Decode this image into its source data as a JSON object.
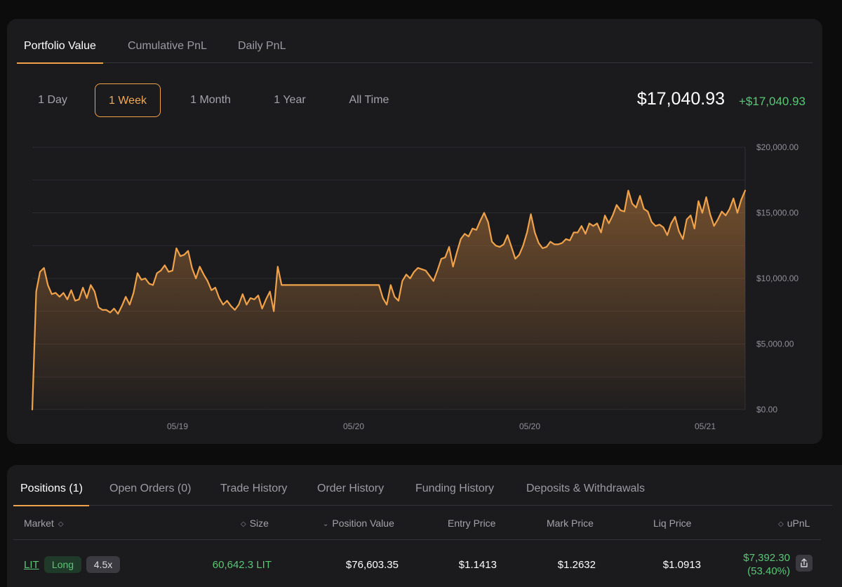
{
  "chart_tabs": [
    {
      "label": "Portfolio Value",
      "active": true
    },
    {
      "label": "Cumulative PnL",
      "active": false
    },
    {
      "label": "Daily PnL",
      "active": false
    }
  ],
  "ranges": [
    {
      "label": "1 Day",
      "active": false
    },
    {
      "label": "1 Week",
      "active": true
    },
    {
      "label": "1 Month",
      "active": false
    },
    {
      "label": "1 Year",
      "active": false
    },
    {
      "label": "All Time",
      "active": false
    }
  ],
  "summary": {
    "value": "$17,040.93",
    "change": "+$17,040.93"
  },
  "colors": {
    "accent": "#f0a24a",
    "positive": "#59c776",
    "panel": "#1b1b1e",
    "background": "#0c0c0d"
  },
  "chart_data": {
    "type": "area",
    "y_ticks": [
      "$20,000.00",
      "$15,000.00",
      "$10,000.00",
      "$5,000.00",
      "$0.00"
    ],
    "ylim": [
      0,
      20000
    ],
    "x_ticks": [
      "05/19",
      "05/20",
      "05/20",
      "05/21"
    ],
    "grid": true,
    "series": [
      {
        "values": [
          0,
          9000,
          10500,
          10800,
          9500,
          8800,
          8900,
          8600,
          8900,
          8400,
          9100,
          8300,
          8400,
          9300,
          8500,
          9500,
          9000,
          7800,
          7600,
          7600,
          7400,
          7700,
          7300,
          7900,
          8600,
          8000,
          8900,
          10400,
          9900,
          10000,
          9600,
          9500,
          10400,
          10600,
          11000,
          10500,
          10600,
          12300,
          11700,
          11800,
          12100,
          10800,
          10000,
          10900,
          10300,
          9800,
          9100,
          9300,
          8500,
          8000,
          8300,
          7900,
          7600,
          8000,
          8800,
          8000,
          8500,
          8400,
          8700,
          7700,
          8400,
          9000,
          7500,
          10900,
          9500,
          9500,
          9500,
          9500,
          9500,
          9500,
          9500,
          9500,
          9500,
          9500,
          9500,
          9500,
          9500,
          9500,
          9500,
          9500,
          9500,
          9500,
          9500,
          9500,
          9500,
          9500,
          9500,
          9500,
          9500,
          9500,
          8500,
          8000,
          9500,
          8600,
          8300,
          9800,
          10300,
          10000,
          10500,
          10800,
          10700,
          10600,
          10200,
          9800,
          10600,
          11500,
          11600,
          12400,
          10900,
          12000,
          13000,
          13400,
          13200,
          13800,
          13700,
          14400,
          15000,
          14300,
          12800,
          12500,
          12400,
          12600,
          13300,
          12400,
          11500,
          11800,
          12500,
          13500,
          14900,
          13500,
          12700,
          12300,
          12400,
          12800,
          12600,
          12600,
          12700,
          13000,
          12900,
          13500,
          13500,
          14000,
          13400,
          14200,
          14000,
          14200,
          13500,
          14800,
          14200,
          14800,
          15600,
          15200,
          15100,
          16700,
          15700,
          15400,
          16300,
          15300,
          15100,
          14300,
          14000,
          14100,
          13900,
          13300,
          14200,
          14700,
          13600,
          13000,
          14500,
          14800,
          13800,
          15900,
          15000,
          16200,
          14900,
          14000,
          14500,
          15100,
          14800,
          15300,
          16100,
          15000,
          16000,
          16700
        ]
      }
    ]
  },
  "positions_tabs": [
    {
      "label": "Positions (1)",
      "active": true
    },
    {
      "label": "Open Orders (0)",
      "active": false
    },
    {
      "label": "Trade History",
      "active": false
    },
    {
      "label": "Order History",
      "active": false
    },
    {
      "label": "Funding History",
      "active": false
    },
    {
      "label": "Deposits & Withdrawals",
      "active": false
    }
  ],
  "table": {
    "headers": {
      "market": "Market",
      "size": "Size",
      "position_value": "Position Value",
      "entry_price": "Entry Price",
      "mark_price": "Mark Price",
      "liq_price": "Liq Price",
      "upnl": "uPnL"
    },
    "rows": [
      {
        "market": "LIT",
        "side": "Long",
        "leverage": "4.5x",
        "size": "60,642.3 LIT",
        "position_value": "$76,603.35",
        "entry_price": "$1.1413",
        "mark_price": "$1.2632",
        "liq_price": "$1.0913",
        "upnl": "$7,392.30",
        "upnl_pct": "(53.40%)"
      }
    ]
  },
  "icons": {
    "sort": "sort-updown-icon",
    "sort_desc": "sort-desc-icon",
    "share": "share-icon"
  }
}
